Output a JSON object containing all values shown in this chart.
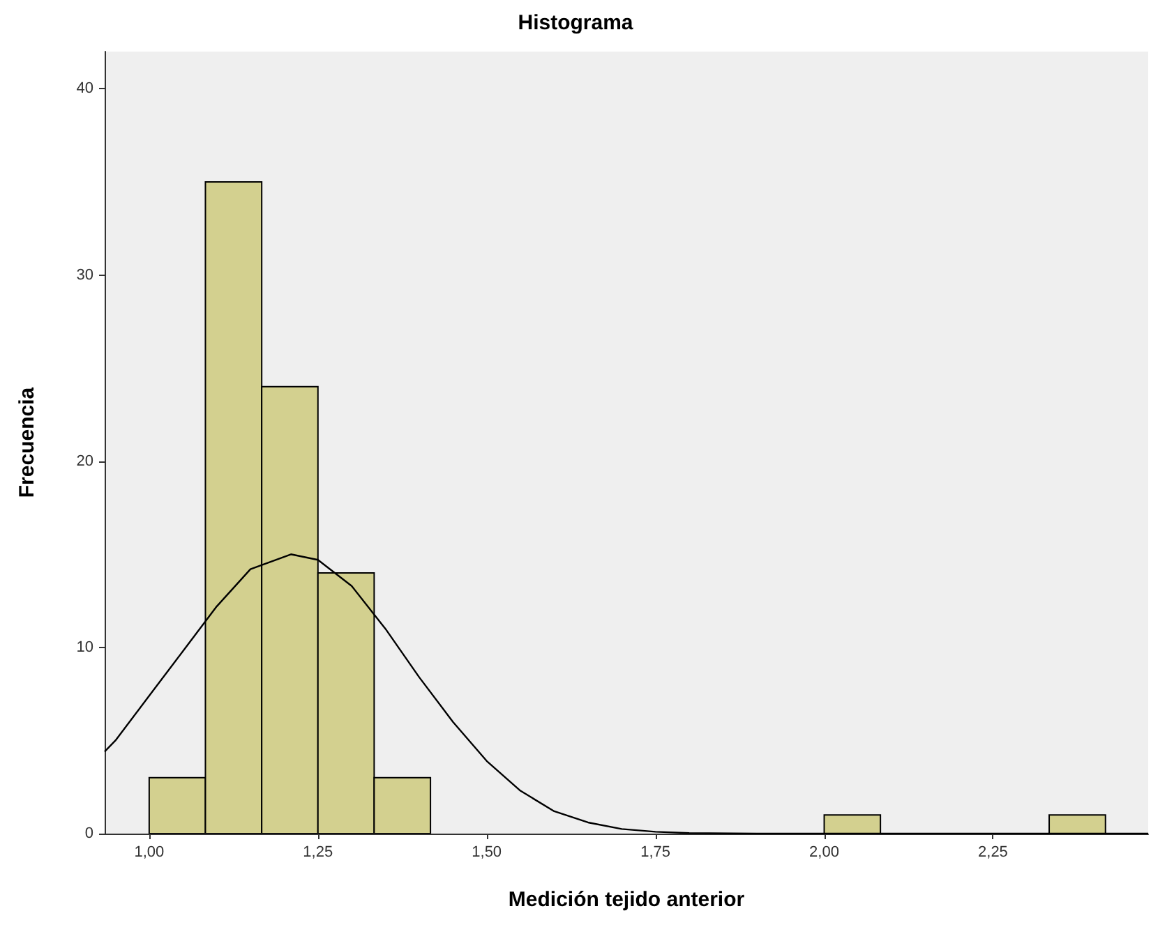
{
  "chart_data": {
    "type": "histogram",
    "title": "Histograma",
    "xlabel": "Medición tejido anterior",
    "ylabel": "Frecuencia",
    "bins": [
      1.0,
      1.0833,
      1.1667,
      1.25,
      1.3333,
      1.4167,
      1.5,
      1.5833,
      1.6667,
      1.75,
      1.8333,
      1.9167,
      2.0,
      2.0833,
      2.1667,
      2.25,
      2.3333,
      2.4167
    ],
    "series": [
      {
        "color": "#d3d08f",
        "values": [
          3,
          35,
          24,
          14,
          3,
          0,
          0,
          0,
          0,
          0,
          0,
          0,
          1,
          0,
          0,
          0,
          1
        ]
      },
      {
        "type": "line",
        "color": "#000000",
        "x": [
          0.934,
          0.95,
          1.0,
          1.05,
          1.1,
          1.15,
          1.21,
          1.25,
          1.3,
          1.35,
          1.4,
          1.45,
          1.5,
          1.55,
          1.6,
          1.65,
          1.7,
          1.75,
          1.8,
          1.9,
          2.0,
          2.48
        ],
        "values": [
          4.4,
          5.0,
          7.4,
          9.8,
          12.2,
          14.2,
          15.0,
          14.7,
          13.3,
          11.0,
          8.4,
          6.0,
          3.9,
          2.3,
          1.2,
          0.6,
          0.25,
          0.1,
          0.03,
          0,
          0,
          0
        ]
      }
    ],
    "xlim": [
      0.934,
      2.48
    ],
    "ylim": [
      0,
      42
    ],
    "xticks": [
      {
        "value": 1.0,
        "label": "1,00"
      },
      {
        "value": 1.25,
        "label": "1,25"
      },
      {
        "value": 1.5,
        "label": "1,50"
      },
      {
        "value": 1.75,
        "label": "1,75"
      },
      {
        "value": 2.0,
        "label": "2,00"
      },
      {
        "value": 2.25,
        "label": "2,25"
      }
    ],
    "yticks": [
      0,
      10,
      20,
      30,
      40
    ],
    "grid": false,
    "marker": "none",
    "line_style": "solid"
  }
}
